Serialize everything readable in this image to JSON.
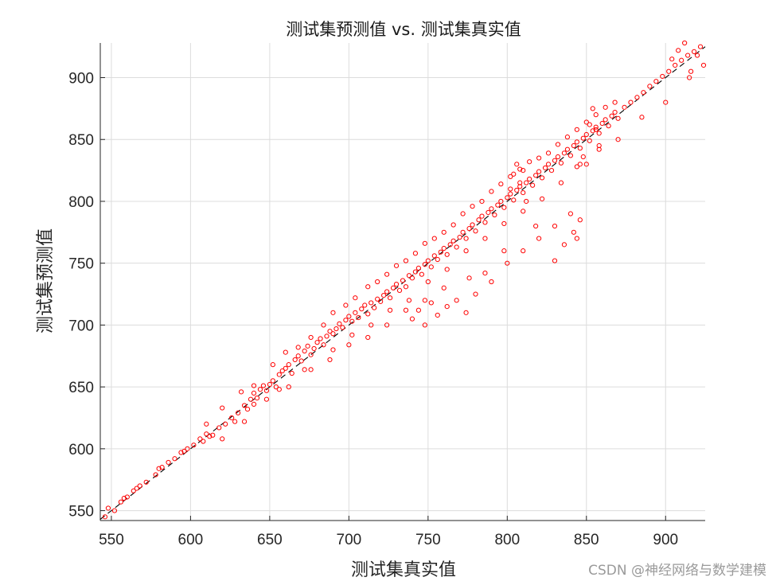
{
  "chart_data": {
    "type": "scatter",
    "title": "测试集预测值 vs. 测试集真实值",
    "xlabel": "测试集真实值",
    "ylabel": "测试集预测值",
    "xlim": [
      543,
      925
    ],
    "ylim": [
      542,
      928
    ],
    "xticks": [
      550,
      600,
      650,
      700,
      750,
      800,
      850,
      900
    ],
    "yticks": [
      550,
      600,
      650,
      700,
      750,
      800,
      850,
      900
    ],
    "grid": true,
    "marker_color": "#ff0000",
    "reference_line": {
      "style": "dashed",
      "color": "#000000",
      "x": [
        543,
        925
      ],
      "y": [
        543,
        925
      ]
    },
    "series": [
      {
        "marker": "circle",
        "x": [
          546,
          548,
          552,
          556,
          560,
          564,
          568,
          572,
          578,
          582,
          586,
          590,
          594,
          598,
          602,
          606,
          608,
          610,
          614,
          618,
          622,
          626,
          630,
          634,
          636,
          638,
          640,
          642,
          644,
          646,
          648,
          650,
          652,
          654,
          656,
          658,
          660,
          662,
          664,
          666,
          668,
          670,
          672,
          674,
          676,
          678,
          680,
          682,
          684,
          686,
          688,
          690,
          692,
          694,
          696,
          698,
          700,
          702,
          704,
          706,
          708,
          710,
          712,
          714,
          716,
          718,
          720,
          722,
          724,
          726,
          728,
          730,
          732,
          734,
          736,
          738,
          740,
          742,
          744,
          746,
          748,
          750,
          752,
          754,
          756,
          758,
          760,
          762,
          764,
          766,
          768,
          770,
          772,
          774,
          776,
          778,
          780,
          782,
          784,
          786,
          788,
          790,
          792,
          794,
          796,
          798,
          800,
          802,
          804,
          806,
          808,
          810,
          812,
          814,
          816,
          818,
          820,
          822,
          824,
          826,
          828,
          830,
          832,
          834,
          836,
          838,
          840,
          842,
          844,
          846,
          848,
          850,
          852,
          854,
          856,
          858,
          860,
          862,
          864,
          866,
          868,
          870,
          874,
          878,
          882,
          886,
          890,
          894,
          898,
          902,
          906,
          910,
          914,
          918,
          922,
          610,
          620,
          632,
          640,
          652,
          660,
          668,
          676,
          684,
          690,
          698,
          704,
          712,
          718,
          724,
          730,
          736,
          742,
          748,
          754,
          760,
          766,
          772,
          778,
          784,
          790,
          796,
          802,
          808,
          814,
          820,
          826,
          832,
          838,
          844,
          850,
          856,
          862,
          868,
          620,
          634,
          648,
          662,
          676,
          690,
          702,
          714,
          726,
          738,
          750,
          762,
          774,
          786,
          798,
          810,
          822,
          834,
          846,
          858,
          870,
          885,
          900,
          915,
          740,
          744,
          748,
          752,
          756,
          762,
          768,
          774,
          780,
          790,
          800,
          810,
          820,
          830,
          840,
          842,
          844,
          846,
          836,
          830,
          818,
          798,
          786,
          776,
          760,
          748,
          736,
          724,
          712,
          700,
          688,
          672,
          656,
          640,
          628,
          612,
          596,
          580,
          566,
          558,
          806,
          808,
          810,
          812,
          804,
          802,
          850,
          852,
          854,
          856,
          858,
          848,
          844,
          904,
          908,
          912,
          916,
          920,
          924
        ],
        "y": [
          545,
          552,
          550,
          557,
          561,
          566,
          570,
          573,
          579,
          585,
          589,
          592,
          597,
          600,
          603,
          608,
          606,
          612,
          611,
          617,
          620,
          625,
          629,
          635,
          632,
          640,
          645,
          641,
          648,
          651,
          647,
          652,
          655,
          650,
          660,
          663,
          665,
          668,
          661,
          672,
          675,
          671,
          679,
          683,
          676,
          681,
          686,
          689,
          684,
          691,
          695,
          693,
          697,
          701,
          698,
          704,
          707,
          703,
          710,
          706,
          713,
          716,
          709,
          718,
          714,
          721,
          719,
          724,
          727,
          722,
          730,
          733,
          728,
          736,
          731,
          740,
          738,
          743,
          746,
          741,
          749,
          752,
          747,
          756,
          753,
          759,
          762,
          757,
          765,
          768,
          763,
          771,
          775,
          770,
          778,
          781,
          776,
          785,
          788,
          783,
          791,
          794,
          789,
          797,
          800,
          795,
          803,
          806,
          801,
          809,
          812,
          807,
          815,
          818,
          813,
          821,
          824,
          819,
          827,
          830,
          825,
          833,
          836,
          831,
          839,
          842,
          837,
          845,
          848,
          843,
          851,
          854,
          849,
          857,
          860,
          855,
          863,
          866,
          861,
          869,
          872,
          867,
          876,
          880,
          884,
          888,
          893,
          897,
          901,
          905,
          910,
          914,
          918,
          921,
          925,
          620,
          633,
          646,
          651,
          668,
          678,
          682,
          690,
          700,
          710,
          716,
          722,
          731,
          735,
          741,
          748,
          752,
          758,
          766,
          770,
          775,
          781,
          790,
          796,
          800,
          808,
          814,
          820,
          826,
          832,
          835,
          839,
          846,
          852,
          858,
          864,
          870,
          876,
          880,
          608,
          622,
          640,
          650,
          664,
          680,
          692,
          700,
          712,
          720,
          735,
          745,
          760,
          770,
          782,
          792,
          802,
          815,
          830,
          842,
          850,
          868,
          880,
          900,
          705,
          712,
          700,
          718,
          708,
          715,
          720,
          710,
          725,
          735,
          750,
          760,
          770,
          780,
          790,
          775,
          770,
          785,
          765,
          752,
          780,
          760,
          742,
          738,
          730,
          720,
          712,
          700,
          690,
          684,
          672,
          664,
          648,
          636,
          622,
          610,
          598,
          584,
          568,
          560,
          830,
          815,
          825,
          800,
          822,
          810,
          830,
          862,
          875,
          858,
          845,
          836,
          828,
          915,
          922,
          928,
          905,
          918,
          910
        ]
      }
    ]
  },
  "watermark": "CSDN @神经网络与数学建模"
}
